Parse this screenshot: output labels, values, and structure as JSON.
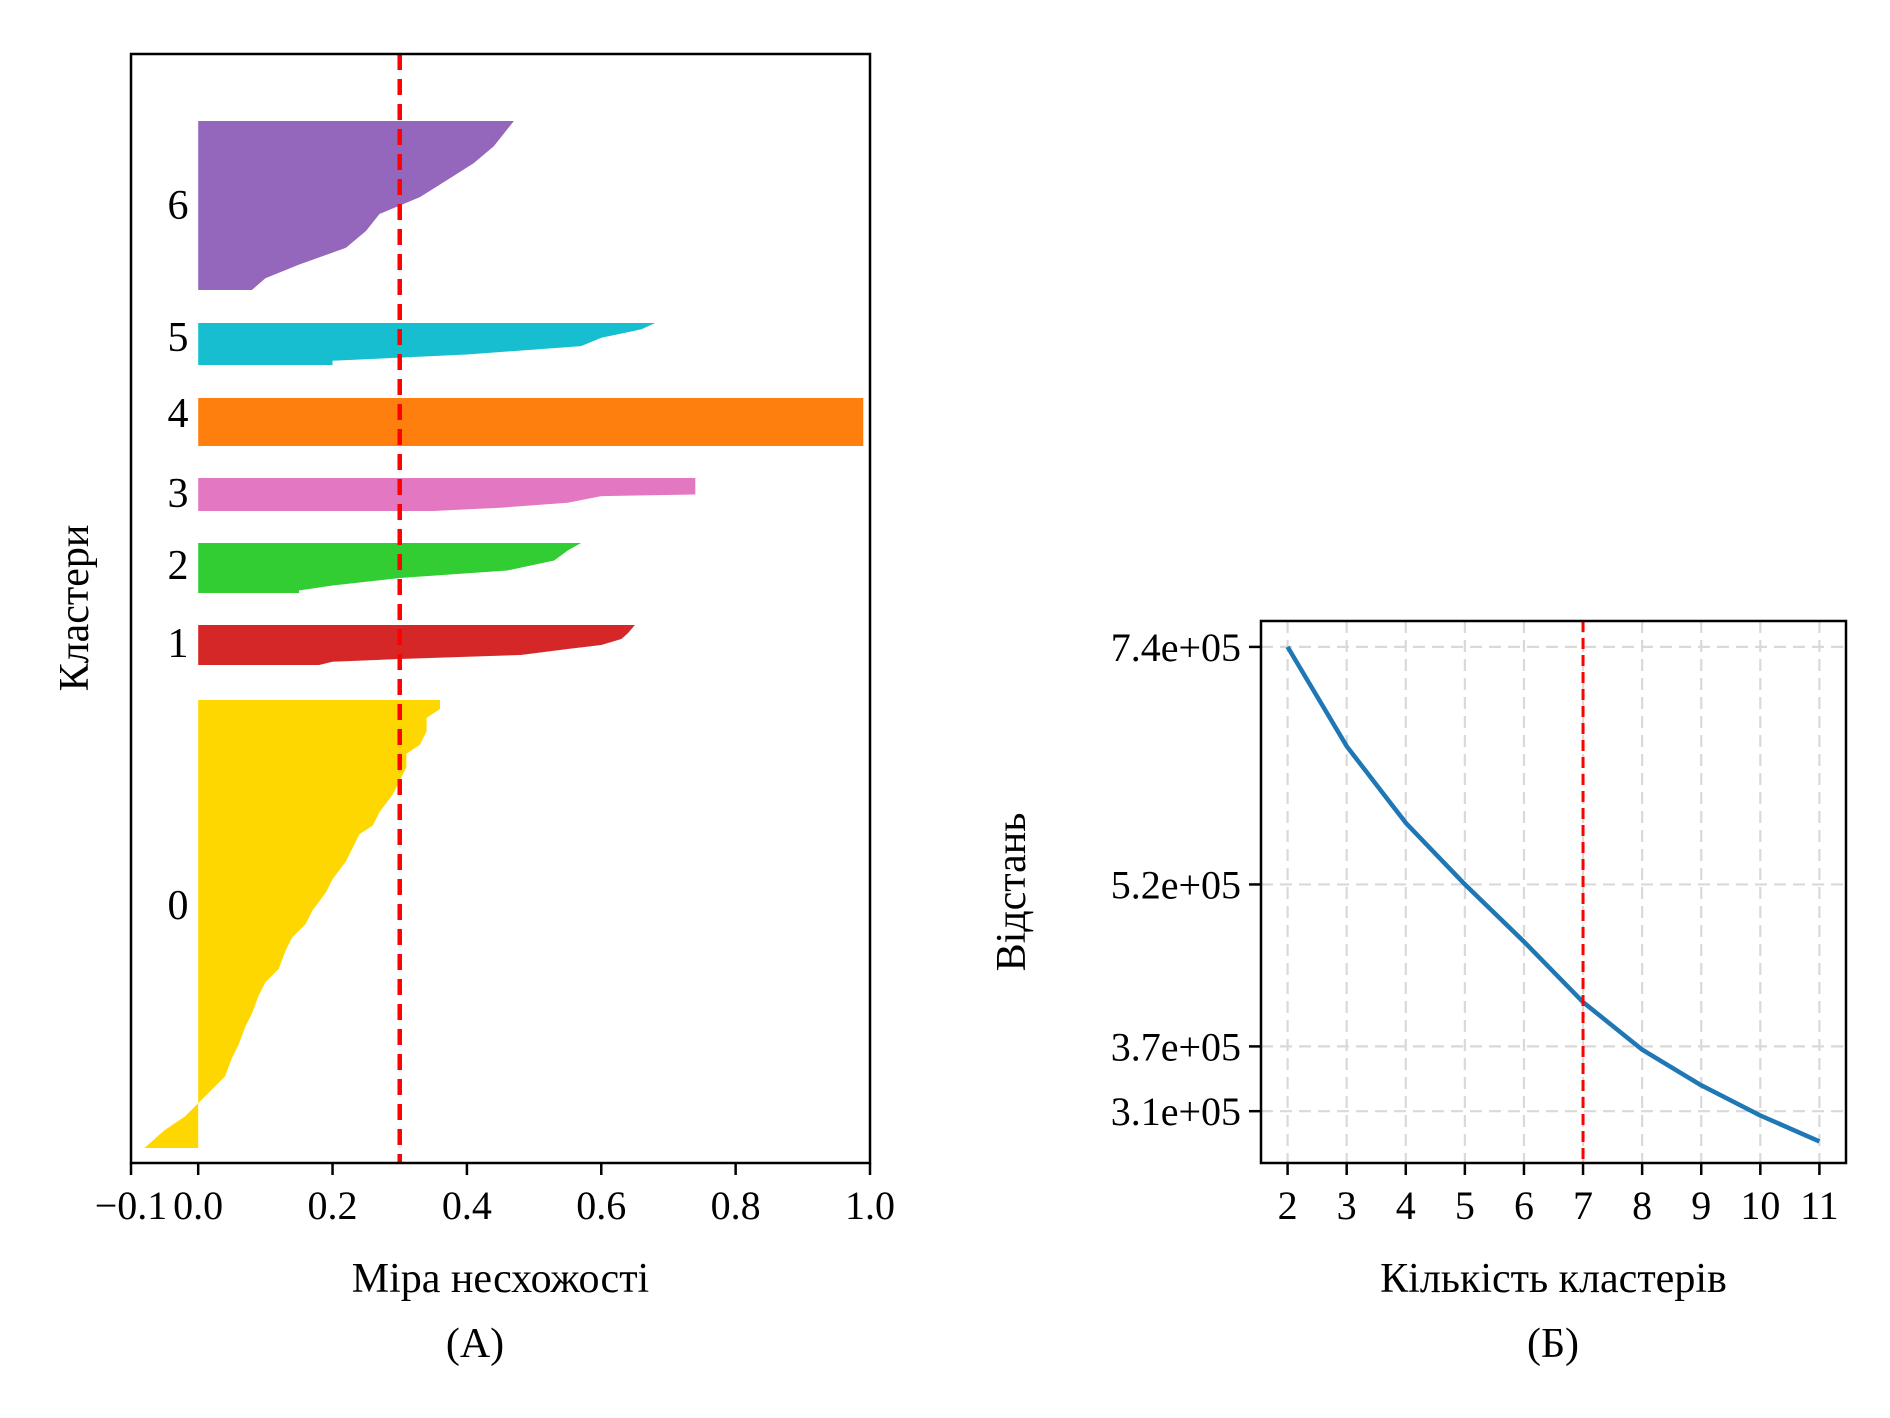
{
  "chart_data": [
    {
      "type": "area",
      "subtype": "silhouette",
      "caption": "(А)",
      "xlabel": "Міра несхожості",
      "ylabel": "Кластери",
      "xlim": [
        -0.1,
        1.0
      ],
      "xticks": [
        -0.1,
        0.0,
        0.2,
        0.4,
        0.6,
        0.8,
        1.0
      ],
      "xtick_labels": [
        "−0.1",
        "0.0",
        "0.2",
        "0.4",
        "0.6",
        "0.8",
        "1.0"
      ],
      "grid": false,
      "reference_line": {
        "x": 0.3,
        "style": "dashed",
        "color": "#ff0000"
      },
      "clusters": [
        {
          "label": "0",
          "color": "#ffd700",
          "min": -0.08,
          "max": 0.36,
          "profile": [
            [
              0,
              0.36
            ],
            [
              0.02,
              0.36
            ],
            [
              0.04,
              0.34
            ],
            [
              0.07,
              0.34
            ],
            [
              0.1,
              0.33
            ],
            [
              0.12,
              0.31
            ],
            [
              0.15,
              0.31
            ],
            [
              0.18,
              0.3
            ],
            [
              0.21,
              0.29
            ],
            [
              0.25,
              0.27
            ],
            [
              0.28,
              0.26
            ],
            [
              0.3,
              0.24
            ],
            [
              0.33,
              0.23
            ],
            [
              0.36,
              0.22
            ],
            [
              0.4,
              0.2
            ],
            [
              0.43,
              0.19
            ],
            [
              0.47,
              0.17
            ],
            [
              0.5,
              0.16
            ],
            [
              0.53,
              0.14
            ],
            [
              0.56,
              0.13
            ],
            [
              0.6,
              0.12
            ],
            [
              0.63,
              0.1
            ],
            [
              0.66,
              0.09
            ],
            [
              0.7,
              0.08
            ],
            [
              0.73,
              0.07
            ],
            [
              0.77,
              0.06
            ],
            [
              0.8,
              0.05
            ],
            [
              0.84,
              0.04
            ],
            [
              0.87,
              0.02
            ],
            [
              0.9,
              0.0
            ],
            [
              0.93,
              -0.02
            ],
            [
              0.96,
              -0.05
            ],
            [
              1,
              -0.08
            ]
          ]
        },
        {
          "label": "1",
          "color": "#d62728",
          "min": 0.0,
          "max": 0.65,
          "profile": [
            [
              0,
              0.65
            ],
            [
              0.2,
              0.64
            ],
            [
              0.35,
              0.63
            ],
            [
              0.5,
              0.6
            ],
            [
              0.6,
              0.55
            ],
            [
              0.75,
              0.48
            ],
            [
              0.85,
              0.3
            ],
            [
              0.92,
              0.2
            ],
            [
              1,
              0.18
            ]
          ]
        },
        {
          "label": "2",
          "color": "#32cd32",
          "min": 0.0,
          "max": 0.57,
          "profile": [
            [
              0,
              0.57
            ],
            [
              0.15,
              0.55
            ],
            [
              0.35,
              0.53
            ],
            [
              0.55,
              0.46
            ],
            [
              0.7,
              0.3
            ],
            [
              0.85,
              0.2
            ],
            [
              0.95,
              0.15
            ],
            [
              1,
              0.15
            ]
          ]
        },
        {
          "label": "3",
          "color": "#e377c2",
          "min": 0.0,
          "max": 0.74,
          "profile": [
            [
              0,
              0.74
            ],
            [
              0.5,
              0.74
            ],
            [
              0.55,
              0.6
            ],
            [
              0.75,
              0.55
            ],
            [
              0.9,
              0.45
            ],
            [
              1,
              0.35
            ]
          ]
        },
        {
          "label": "4",
          "color": "#ff7f0e",
          "min": 0.0,
          "max": 0.99,
          "profile": [
            [
              0,
              0.99
            ],
            [
              1,
              0.99
            ]
          ]
        },
        {
          "label": "5",
          "color": "#17becf",
          "min": 0.0,
          "max": 0.68,
          "profile": [
            [
              0,
              0.68
            ],
            [
              0.15,
              0.66
            ],
            [
              0.35,
              0.6
            ],
            [
              0.55,
              0.57
            ],
            [
              0.75,
              0.4
            ],
            [
              0.9,
              0.2
            ],
            [
              1,
              0.2
            ]
          ]
        },
        {
          "label": "6",
          "color": "#9467bd",
          "min": 0.0,
          "max": 0.47,
          "profile": [
            [
              0,
              0.47
            ],
            [
              0.05,
              0.46
            ],
            [
              0.15,
              0.44
            ],
            [
              0.25,
              0.41
            ],
            [
              0.35,
              0.37
            ],
            [
              0.45,
              0.33
            ],
            [
              0.55,
              0.27
            ],
            [
              0.65,
              0.25
            ],
            [
              0.75,
              0.22
            ],
            [
              0.85,
              0.15
            ],
            [
              0.93,
              0.1
            ],
            [
              1,
              0.08
            ]
          ]
        }
      ]
    },
    {
      "type": "line",
      "caption": "(Б)",
      "xlabel": "Кількість кластерів",
      "ylabel": "Відстань",
      "x": [
        2,
        3,
        4,
        5,
        6,
        7,
        8,
        9,
        10,
        11
      ],
      "y": [
        740000,
        648000,
        577000,
        520000,
        467000,
        411000,
        367000,
        334000,
        306000,
        282000
      ],
      "xlim": [
        1.55,
        11.45
      ],
      "ylim": [
        262000,
        764000
      ],
      "yticks": [
        310000,
        370000,
        520000,
        740000
      ],
      "ytick_labels": [
        "3.1e+05",
        "3.7e+05",
        "5.2e+05",
        "7.4e+05"
      ],
      "xtick_labels": [
        "2",
        "3",
        "4",
        "5",
        "6",
        "7",
        "8",
        "9",
        "10",
        "11"
      ],
      "grid": true,
      "line_color": "#1f77b4",
      "reference_line": {
        "x": 7,
        "style": "dashed",
        "color": "#ff0000"
      }
    }
  ]
}
